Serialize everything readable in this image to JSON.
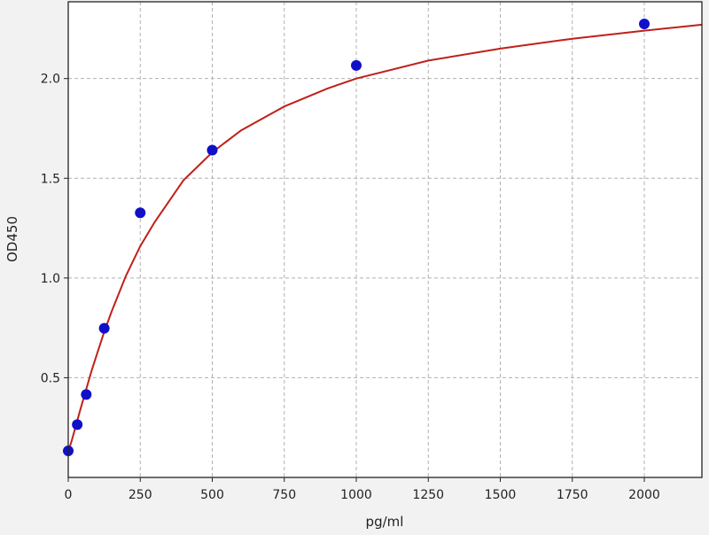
{
  "chart_data": {
    "type": "scatter",
    "title": "",
    "xlabel": "pg/ml",
    "ylabel": "OD450",
    "xlim": [
      0,
      2200
    ],
    "ylim": [
      0.0,
      2.385
    ],
    "xticks": [
      0,
      250,
      500,
      750,
      1000,
      1250,
      1500,
      1750,
      2000
    ],
    "xtick_labels": [
      "0",
      "250",
      "500",
      "750",
      "1000",
      "1250",
      "1500",
      "1750",
      "2000"
    ],
    "yticks": [
      0.5,
      1.0,
      1.5,
      2.0
    ],
    "ytick_labels": [
      "0.5",
      "1.0",
      "1.5",
      "2.0"
    ],
    "grid": true,
    "series": [
      {
        "type": "scatter",
        "color": "#1010c8",
        "x": [
          0,
          31.25,
          62.5,
          125,
          250,
          500,
          1000,
          2000
        ],
        "y": [
          0.133,
          0.265,
          0.416,
          0.748,
          1.327,
          1.641,
          2.066,
          2.274
        ]
      },
      {
        "type": "line",
        "color": "#c0201a",
        "x": [
          0,
          10,
          20,
          40,
          60,
          80,
          100,
          125,
          150,
          200,
          250,
          300,
          400,
          500,
          600,
          750,
          900,
          1000,
          1250,
          1500,
          1750,
          2000,
          2200
        ],
        "y": [
          0.13,
          0.175,
          0.225,
          0.33,
          0.43,
          0.53,
          0.62,
          0.73,
          0.83,
          1.01,
          1.16,
          1.28,
          1.49,
          1.63,
          1.74,
          1.86,
          1.95,
          2.0,
          2.09,
          2.15,
          2.2,
          2.24,
          2.27
        ]
      }
    ]
  }
}
